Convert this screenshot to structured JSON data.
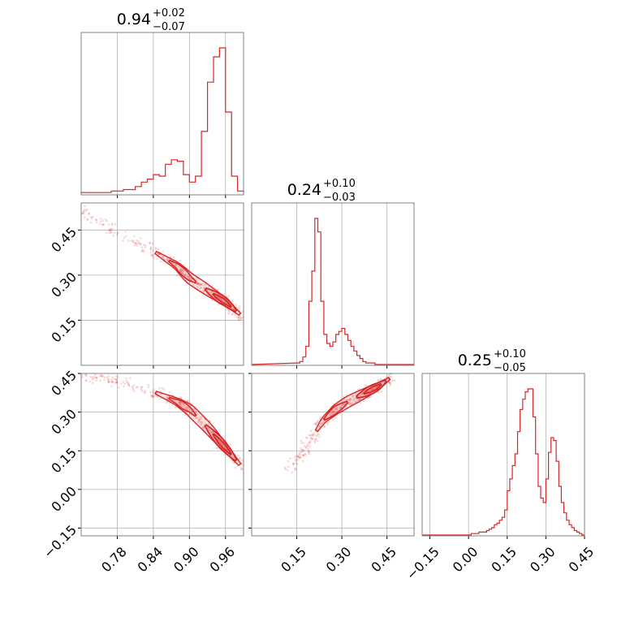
{
  "chart_data": {
    "type": "corner",
    "color": "#d62728",
    "parameters": [
      {
        "title_value": "0.94",
        "title_plus": "+0.02",
        "title_minus": "−0.07",
        "range": [
          0.72,
          0.99
        ],
        "ticks": [
          0.78,
          0.84,
          0.9,
          0.96
        ],
        "tick_labels": [
          "0.78",
          "0.84",
          "0.90",
          "0.96"
        ],
        "hist_x": [
          0.72,
          0.73,
          0.74,
          0.75,
          0.76,
          0.77,
          0.78,
          0.79,
          0.8,
          0.81,
          0.82,
          0.83,
          0.84,
          0.85,
          0.86,
          0.87,
          0.88,
          0.89,
          0.9,
          0.91,
          0.92,
          0.93,
          0.94,
          0.95,
          0.96,
          0.97,
          0.98
        ],
        "hist_y": [
          0.01,
          0.01,
          0.01,
          0.01,
          0.01,
          0.02,
          0.02,
          0.03,
          0.03,
          0.05,
          0.08,
          0.1,
          0.13,
          0.12,
          0.2,
          0.23,
          0.22,
          0.13,
          0.08,
          0.12,
          0.42,
          0.75,
          0.92,
          0.98,
          0.55,
          0.12,
          0.02
        ]
      },
      {
        "title_value": "0.24",
        "title_plus": "+0.10",
        "title_minus": "−0.03",
        "range": [
          0.0,
          0.54
        ],
        "ticks": [
          0.15,
          0.3,
          0.45
        ],
        "tick_labels": [
          "0.15",
          "0.30",
          "0.45"
        ],
        "hist_x": [
          0.15,
          0.16,
          0.17,
          0.18,
          0.19,
          0.2,
          0.21,
          0.22,
          0.23,
          0.24,
          0.25,
          0.26,
          0.27,
          0.28,
          0.29,
          0.3,
          0.31,
          0.32,
          0.33,
          0.34,
          0.35,
          0.36,
          0.37,
          0.38,
          0.39,
          0.4,
          0.41,
          0.42,
          0.43,
          0.44,
          0.45
        ],
        "hist_y": [
          0.01,
          0.02,
          0.05,
          0.12,
          0.42,
          0.62,
          0.97,
          0.88,
          0.42,
          0.2,
          0.14,
          0.12,
          0.15,
          0.2,
          0.22,
          0.24,
          0.2,
          0.16,
          0.12,
          0.09,
          0.06,
          0.04,
          0.02,
          0.01,
          0.01,
          0.01,
          0.0,
          0.0,
          0.0,
          0.0,
          0.0
        ]
      },
      {
        "title_value": "0.25",
        "title_plus": "+0.10",
        "title_minus": "−0.05",
        "range": [
          -0.18,
          0.45
        ],
        "ticks": [
          -0.15,
          0.0,
          0.15,
          0.3,
          0.45
        ],
        "tick_labels": [
          "−0.15",
          "0.00",
          "0.15",
          "0.30",
          "0.45"
        ],
        "hist_x": [
          -0.03,
          -0.02,
          -0.01,
          0.0,
          0.01,
          0.02,
          0.03,
          0.04,
          0.05,
          0.06,
          0.07,
          0.08,
          0.09,
          0.1,
          0.11,
          0.12,
          0.13,
          0.14,
          0.15,
          0.16,
          0.17,
          0.18,
          0.19,
          0.2,
          0.21,
          0.22,
          0.23,
          0.24,
          0.25,
          0.26,
          0.27,
          0.28,
          0.29,
          0.3,
          0.31,
          0.32,
          0.33,
          0.34,
          0.35,
          0.36,
          0.37,
          0.38,
          0.39,
          0.4,
          0.41,
          0.42,
          0.43,
          0.44
        ],
        "hist_y": [
          0.0,
          0.0,
          0.0,
          0.0,
          0.01,
          0.01,
          0.01,
          0.02,
          0.02,
          0.02,
          0.03,
          0.04,
          0.05,
          0.07,
          0.08,
          0.1,
          0.12,
          0.17,
          0.3,
          0.38,
          0.47,
          0.55,
          0.7,
          0.85,
          0.92,
          0.97,
          0.99,
          0.99,
          0.8,
          0.55,
          0.33,
          0.25,
          0.22,
          0.38,
          0.56,
          0.66,
          0.64,
          0.5,
          0.33,
          0.22,
          0.15,
          0.1,
          0.07,
          0.05,
          0.03,
          0.02,
          0.01,
          0.0
        ]
      }
    ],
    "pairs": [
      {
        "x_param": 0,
        "y_param": 1,
        "ridge_x": [
          0.72,
          0.78,
          0.84,
          0.88,
          0.9,
          0.93,
          0.96,
          0.99
        ],
        "ridge_y": [
          0.51,
          0.44,
          0.38,
          0.33,
          0.29,
          0.25,
          0.21,
          0.16
        ]
      },
      {
        "x_param": 0,
        "y_param": 2,
        "ridge_x": [
          0.72,
          0.78,
          0.84,
          0.88,
          0.9,
          0.93,
          0.96,
          0.99
        ],
        "ridge_y": [
          0.44,
          0.42,
          0.38,
          0.34,
          0.31,
          0.24,
          0.16,
          0.08
        ]
      },
      {
        "x_param": 1,
        "y_param": 2,
        "ridge_x": [
          0.12,
          0.17,
          0.2,
          0.24,
          0.28,
          0.32,
          0.37,
          0.42,
          0.47
        ],
        "ridge_y": [
          0.07,
          0.15,
          0.2,
          0.27,
          0.31,
          0.34,
          0.37,
          0.4,
          0.44
        ]
      }
    ],
    "grid": true
  }
}
